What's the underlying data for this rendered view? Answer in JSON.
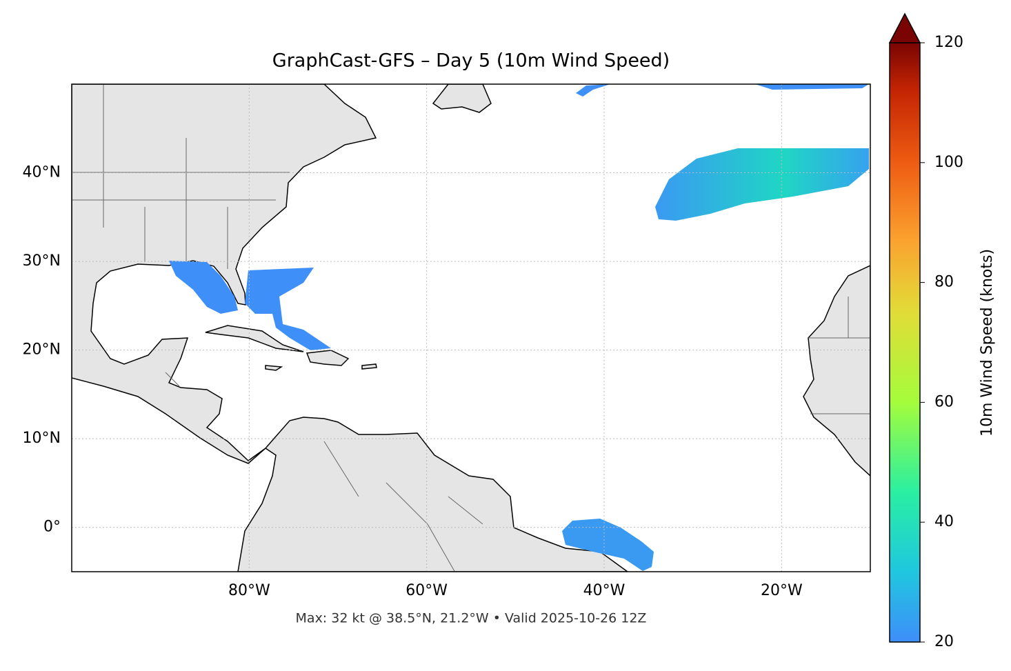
{
  "chart_data": {
    "type": "map",
    "title": "GraphCast-GFS – Day 5 (10m Wind Speed)",
    "footer": "Max: 32 kt @ 38.5°N, 21.2°W • Valid 2025-10-26 12Z",
    "xlim": [
      -100,
      -10
    ],
    "ylim": [
      -5,
      50
    ],
    "xticks": [
      {
        "value": -80,
        "label": "80°W"
      },
      {
        "value": -60,
        "label": "60°W"
      },
      {
        "value": -40,
        "label": "40°W"
      },
      {
        "value": -20,
        "label": "20°W"
      }
    ],
    "yticks": [
      {
        "value": 0,
        "label": "0°"
      },
      {
        "value": 10,
        "label": "10°N"
      },
      {
        "value": 20,
        "label": "20°N"
      },
      {
        "value": 30,
        "label": "30°N"
      },
      {
        "value": 40,
        "label": "40°N"
      }
    ],
    "grid": true,
    "colorbar": {
      "label": "10m Wind Speed (knots)",
      "lim": [
        20,
        120
      ],
      "ticks": [
        20,
        40,
        60,
        80,
        100,
        120
      ]
    }
  }
}
